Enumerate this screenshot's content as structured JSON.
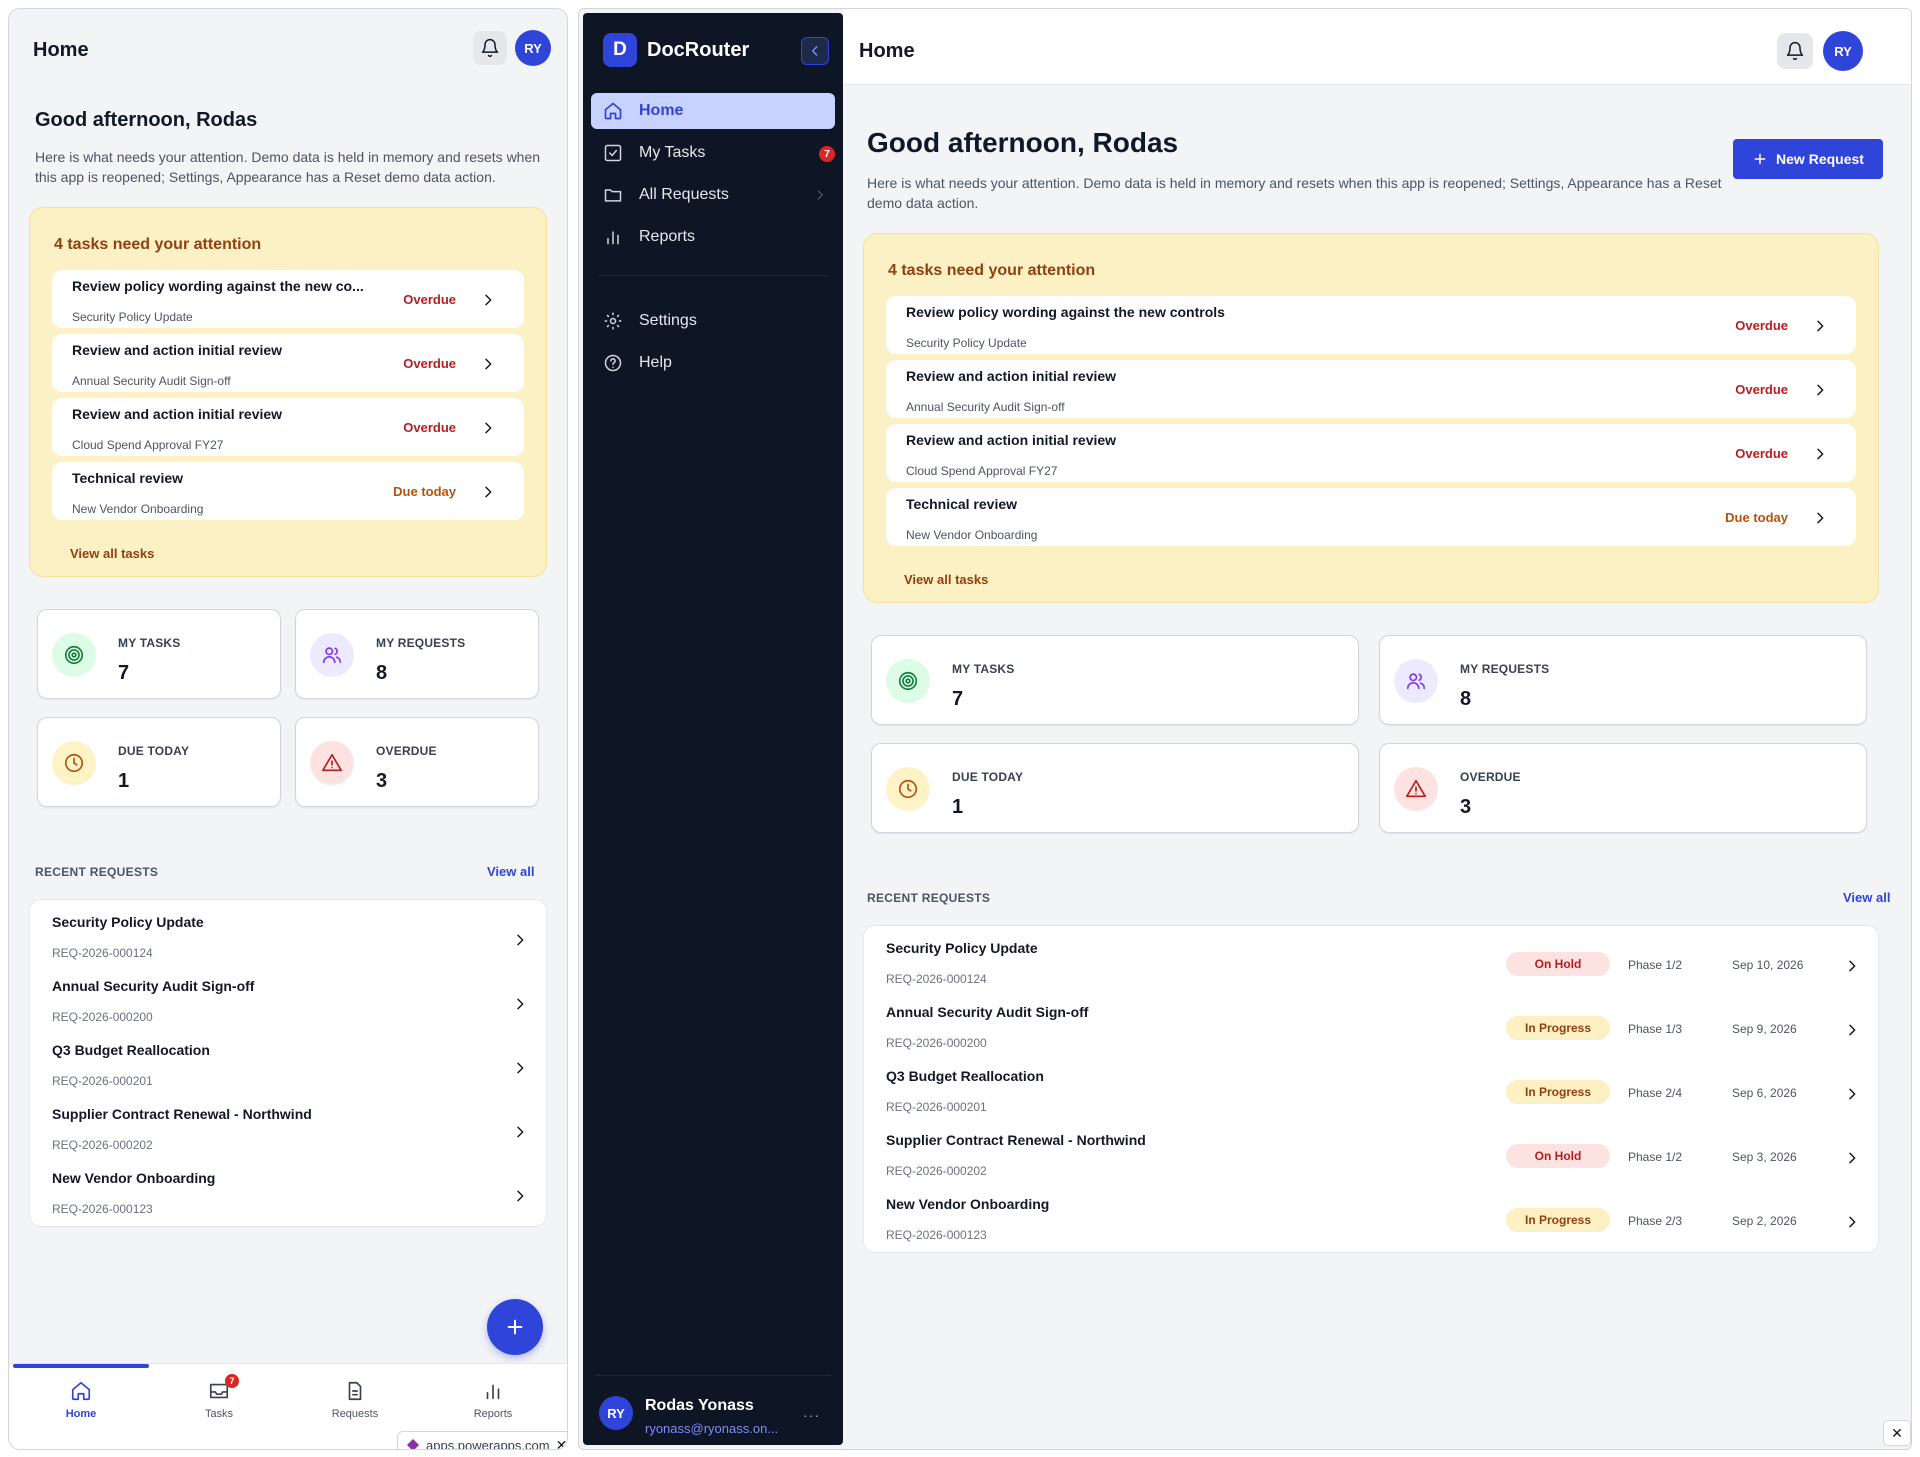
{
  "mobile": {
    "header": {
      "title": "Home",
      "avatar": "RY",
      "bell_icon": "bell-icon"
    },
    "greeting": "Good afternoon, Rodas",
    "subtitle": "Here is what needs your attention. Demo data is held in memory and resets when this app is reopened; Settings, Appearance has a Reset demo data action.",
    "attention": {
      "title": "4 tasks need your attention",
      "view_all": "View all tasks",
      "tasks": [
        {
          "title": "Review policy wording against the new co...",
          "sub": "Security Policy Update",
          "status": "Overdue"
        },
        {
          "title": "Review and action initial review",
          "sub": "Annual Security Audit Sign-off",
          "status": "Overdue"
        },
        {
          "title": "Review and action initial review",
          "sub": "Cloud Spend Approval FY27",
          "status": "Overdue"
        },
        {
          "title": "Technical review",
          "sub": "New Vendor Onboarding",
          "status": "Due today"
        }
      ]
    },
    "stats": [
      {
        "label": "MY TASKS",
        "value": "7"
      },
      {
        "label": "MY REQUESTS",
        "value": "8"
      },
      {
        "label": "DUE TODAY",
        "value": "1"
      },
      {
        "label": "OVERDUE",
        "value": "3"
      }
    ],
    "recent": {
      "label": "RECENT REQUESTS",
      "view_all": "View all",
      "items": [
        {
          "title": "Security Policy Update",
          "id": "REQ-2026-000124"
        },
        {
          "title": "Annual Security Audit Sign-off",
          "id": "REQ-2026-000200"
        },
        {
          "title": "Q3 Budget Reallocation",
          "id": "REQ-2026-000201"
        },
        {
          "title": "Supplier Contract Renewal - Northwind",
          "id": "REQ-2026-000202"
        },
        {
          "title": "New Vendor Onboarding",
          "id": "REQ-2026-000123"
        }
      ]
    },
    "tabbar": {
      "tabs": [
        {
          "label": "Home",
          "icon": "home-icon",
          "active": true
        },
        {
          "label": "Tasks",
          "icon": "inbox-icon",
          "badge": "7"
        },
        {
          "label": "Requests",
          "icon": "document-icon"
        },
        {
          "label": "Reports",
          "icon": "bar-chart-icon"
        }
      ]
    },
    "url": "apps.powerapps.com"
  },
  "desktop": {
    "sidebar": {
      "logo": "D",
      "app_name": "DocRouter",
      "nav": [
        {
          "label": "Home",
          "icon": "home-icon",
          "active": true
        },
        {
          "label": "My Tasks",
          "icon": "checkbox-icon",
          "badge": "7"
        },
        {
          "label": "All Requests",
          "icon": "folder-icon",
          "has_chevron": true
        },
        {
          "label": "Reports",
          "icon": "bar-chart-icon"
        },
        {
          "label": "Settings",
          "icon": "gear-icon"
        },
        {
          "label": "Help",
          "icon": "help-icon"
        }
      ],
      "user": {
        "initials": "RY",
        "name": "Rodas Yonass",
        "email": "ryonass@ryonass.on..."
      }
    },
    "header": {
      "title": "Home",
      "avatar": "RY"
    },
    "greeting": "Good afternoon, Rodas",
    "subtitle": "Here is what needs your attention. Demo data is held in memory and resets when this app is reopened; Settings, Appearance has a Reset demo data action.",
    "new_request": "New Request",
    "attention": {
      "title": "4 tasks need your attention",
      "view_all": "View all tasks",
      "tasks": [
        {
          "title": "Review policy wording against the new controls",
          "sub": "Security Policy Update",
          "status": "Overdue"
        },
        {
          "title": "Review and action initial review",
          "sub": "Annual Security Audit Sign-off",
          "status": "Overdue"
        },
        {
          "title": "Review and action initial review",
          "sub": "Cloud Spend Approval FY27",
          "status": "Overdue"
        },
        {
          "title": "Technical review",
          "sub": "New Vendor Onboarding",
          "status": "Due today"
        }
      ]
    },
    "stats": [
      {
        "label": "MY TASKS",
        "value": "7"
      },
      {
        "label": "MY REQUESTS",
        "value": "8"
      },
      {
        "label": "DUE TODAY",
        "value": "1"
      },
      {
        "label": "OVERDUE",
        "value": "3"
      }
    ],
    "recent": {
      "label": "RECENT REQUESTS",
      "view_all": "View all",
      "items": [
        {
          "title": "Security Policy Update",
          "id": "REQ-2026-000124",
          "status": "On Hold",
          "phase": "Phase 1/2",
          "date": "Sep 10, 2026"
        },
        {
          "title": "Annual Security Audit Sign-off",
          "id": "REQ-2026-000200",
          "status": "In Progress",
          "phase": "Phase 1/3",
          "date": "Sep 9, 2026"
        },
        {
          "title": "Q3 Budget Reallocation",
          "id": "REQ-2026-000201",
          "status": "In Progress",
          "phase": "Phase 2/4",
          "date": "Sep 6, 2026"
        },
        {
          "title": "Supplier Contract Renewal - Northwind",
          "id": "REQ-2026-000202",
          "status": "On Hold",
          "phase": "Phase 1/2",
          "date": "Sep 3, 2026"
        },
        {
          "title": "New Vendor Onboarding",
          "id": "REQ-2026-000123",
          "status": "In Progress",
          "phase": "Phase 2/3",
          "date": "Sep 2, 2026"
        }
      ]
    }
  },
  "colors": {
    "primary": "#2f44d9",
    "sidebar_bg": "#0e1524",
    "attention_bg": "#fbf1c4",
    "overdue": "#b91c1c",
    "due_today": "#b45309",
    "on_hold_bg": "#fde2e2",
    "in_progress_bg": "#fdf0c2"
  }
}
